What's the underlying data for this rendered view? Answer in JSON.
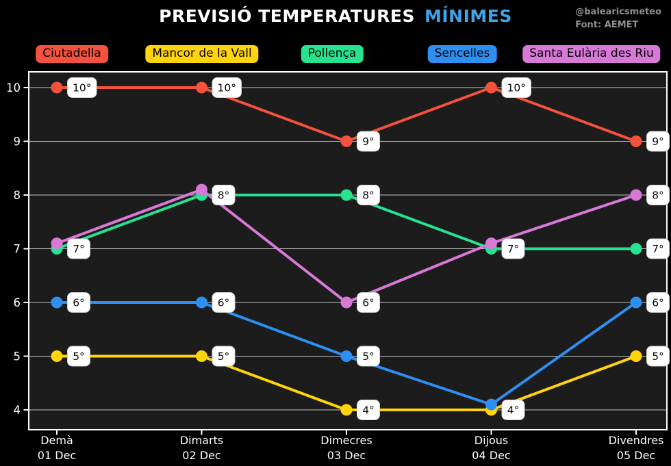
{
  "header": {
    "title_main": "PREVISIÓ TEMPERATURES",
    "title_accent": "MÍNIMES",
    "accent_color": "#41A4E6",
    "credit_line1": "@balearicsmeteo",
    "credit_line2": "Font: AEMET",
    "credit_color": "#8f8f8f"
  },
  "chart_data": {
    "type": "line",
    "x_categories": [
      {
        "day": "Demà",
        "date": "01 Dec"
      },
      {
        "day": "Dimarts",
        "date": "02 Dec"
      },
      {
        "day": "Dimecres",
        "date": "03 Dec"
      },
      {
        "day": "Dijous",
        "date": "04 Dec"
      },
      {
        "day": "Divendres",
        "date": "05 Dec"
      }
    ],
    "yticks": [
      4,
      5,
      6,
      7,
      8,
      9,
      10
    ],
    "ylim": [
      3.6,
      10.3
    ],
    "grid": "horizontal",
    "legend_position": "top",
    "series": [
      {
        "name": "Ciutadella",
        "color": "#F4523C",
        "values": [
          10,
          10,
          9,
          10,
          9
        ],
        "draw_offsets": [
          0,
          0,
          0,
          0,
          0
        ]
      },
      {
        "name": "Mancor de la Vall",
        "color": "#FFD40A",
        "values": [
          5,
          5,
          4,
          4,
          5
        ],
        "draw_offsets": [
          0,
          0,
          0,
          0,
          0
        ]
      },
      {
        "name": "Pollença",
        "color": "#25E38F",
        "values": [
          7,
          8,
          8,
          7,
          7
        ],
        "draw_offsets": [
          0,
          0,
          0,
          0,
          0
        ]
      },
      {
        "name": "Sencelles",
        "color": "#2E8FF2",
        "values": [
          6,
          6,
          5,
          4,
          6
        ],
        "draw_offsets": [
          0,
          0,
          0,
          0.1,
          0
        ]
      },
      {
        "name": "Santa Eulària des Riu",
        "color": "#D879D8",
        "values": [
          7,
          8,
          6,
          7,
          8
        ],
        "draw_offsets": [
          0.1,
          0.1,
          0,
          0.1,
          0
        ]
      }
    ],
    "point_labels": [
      {
        "x": 0,
        "y": 10,
        "text": "10°"
      },
      {
        "x": 0,
        "y": 7,
        "text": "7°"
      },
      {
        "x": 0,
        "y": 6,
        "text": "6°"
      },
      {
        "x": 0,
        "y": 5,
        "text": "5°"
      },
      {
        "x": 1,
        "y": 10,
        "text": "10°"
      },
      {
        "x": 1,
        "y": 8,
        "text": "8°"
      },
      {
        "x": 1,
        "y": 6,
        "text": "6°"
      },
      {
        "x": 1,
        "y": 5,
        "text": "5°"
      },
      {
        "x": 2,
        "y": 9,
        "text": "9°"
      },
      {
        "x": 2,
        "y": 8,
        "text": "8°"
      },
      {
        "x": 2,
        "y": 6,
        "text": "6°"
      },
      {
        "x": 2,
        "y": 5,
        "text": "5°"
      },
      {
        "x": 2,
        "y": 4,
        "text": "4°"
      },
      {
        "x": 3,
        "y": 10,
        "text": "10°"
      },
      {
        "x": 3,
        "y": 7,
        "text": "7°"
      },
      {
        "x": 3,
        "y": 4,
        "text": "4°"
      },
      {
        "x": 4,
        "y": 9,
        "text": "9°"
      },
      {
        "x": 4,
        "y": 8,
        "text": "8°"
      },
      {
        "x": 4,
        "y": 7,
        "text": "7°"
      },
      {
        "x": 4,
        "y": 6,
        "text": "6°"
      },
      {
        "x": 4,
        "y": 5,
        "text": "5°"
      }
    ],
    "colors": {
      "plot_background": "#1c1c1c",
      "page_background": "#000000",
      "gridline": "#c9c9c9",
      "frame": "#ffffff",
      "tick_label": "#ffffff",
      "point_label_bg": "#ffffff",
      "point_label_text": "#0b0b0b"
    }
  }
}
